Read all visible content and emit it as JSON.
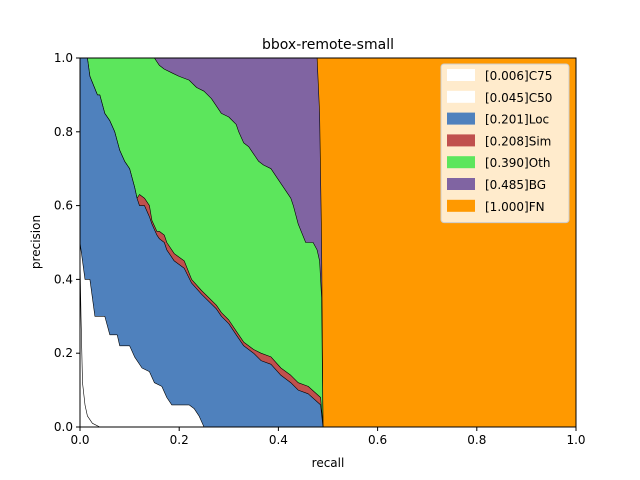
{
  "chart_data": {
    "type": "area",
    "title": "bbox-remote-small",
    "xlabel": "recall",
    "ylabel": "precision",
    "xlim": [
      0,
      1
    ],
    "ylim": [
      0,
      1
    ],
    "x_ticks": [
      "0.0",
      "0.2",
      "0.4",
      "0.6",
      "0.8",
      "1.0"
    ],
    "y_ticks": [
      "0.0",
      "0.2",
      "0.4",
      "0.6",
      "0.8",
      "1.0"
    ],
    "grid": false,
    "legend_position": "top-right",
    "series": [
      {
        "name": "[0.006]C75",
        "color": "#ffffff",
        "points": [
          [
            0,
            0.46
          ],
          [
            0.002,
            0.3
          ],
          [
            0.005,
            0.12
          ],
          [
            0.01,
            0.06
          ],
          [
            0.015,
            0.03
          ],
          [
            0.025,
            0.01
          ],
          [
            0.04,
            0.0
          ]
        ]
      },
      {
        "name": "[0.045]C50",
        "color": "#ffffff",
        "points": [
          [
            0,
            0.5
          ],
          [
            0.005,
            0.45
          ],
          [
            0.01,
            0.4
          ],
          [
            0.02,
            0.4
          ],
          [
            0.03,
            0.3
          ],
          [
            0.05,
            0.3
          ],
          [
            0.06,
            0.25
          ],
          [
            0.075,
            0.25
          ],
          [
            0.08,
            0.22
          ],
          [
            0.1,
            0.22
          ],
          [
            0.11,
            0.19
          ],
          [
            0.125,
            0.16
          ],
          [
            0.14,
            0.15
          ],
          [
            0.15,
            0.12
          ],
          [
            0.165,
            0.11
          ],
          [
            0.175,
            0.08
          ],
          [
            0.185,
            0.06
          ],
          [
            0.22,
            0.06
          ],
          [
            0.23,
            0.05
          ],
          [
            0.24,
            0.03
          ],
          [
            0.25,
            0.0
          ]
        ]
      },
      {
        "name": "[0.201]Loc",
        "color": "#4f81bd",
        "points": [
          [
            0,
            1.0
          ],
          [
            0.015,
            1.0
          ],
          [
            0.02,
            0.95
          ],
          [
            0.035,
            0.9
          ],
          [
            0.04,
            0.9
          ],
          [
            0.05,
            0.85
          ],
          [
            0.06,
            0.83
          ],
          [
            0.07,
            0.8
          ],
          [
            0.08,
            0.75
          ],
          [
            0.09,
            0.72
          ],
          [
            0.1,
            0.7
          ],
          [
            0.11,
            0.65
          ],
          [
            0.115,
            0.62
          ],
          [
            0.12,
            0.6
          ],
          [
            0.13,
            0.6
          ],
          [
            0.14,
            0.57
          ],
          [
            0.145,
            0.55
          ],
          [
            0.155,
            0.52
          ],
          [
            0.16,
            0.51
          ],
          [
            0.17,
            0.5
          ],
          [
            0.175,
            0.48
          ],
          [
            0.19,
            0.45
          ],
          [
            0.21,
            0.43
          ],
          [
            0.225,
            0.39
          ],
          [
            0.245,
            0.36
          ],
          [
            0.275,
            0.32
          ],
          [
            0.285,
            0.3
          ],
          [
            0.3,
            0.28
          ],
          [
            0.315,
            0.25
          ],
          [
            0.33,
            0.22
          ],
          [
            0.35,
            0.2
          ],
          [
            0.365,
            0.18
          ],
          [
            0.385,
            0.17
          ],
          [
            0.405,
            0.14
          ],
          [
            0.425,
            0.12
          ],
          [
            0.44,
            0.1
          ],
          [
            0.46,
            0.09
          ],
          [
            0.485,
            0.06
          ],
          [
            0.49,
            0.0
          ]
        ]
      },
      {
        "name": "[0.208]Sim",
        "color": "#c0504d",
        "points": [
          [
            0,
            1.0
          ],
          [
            0.015,
            1.0
          ],
          [
            0.02,
            0.95
          ],
          [
            0.035,
            0.9
          ],
          [
            0.04,
            0.9
          ],
          [
            0.05,
            0.85
          ],
          [
            0.06,
            0.83
          ],
          [
            0.07,
            0.8
          ],
          [
            0.08,
            0.75
          ],
          [
            0.09,
            0.72
          ],
          [
            0.1,
            0.7
          ],
          [
            0.11,
            0.65
          ],
          [
            0.115,
            0.62
          ],
          [
            0.12,
            0.63
          ],
          [
            0.13,
            0.62
          ],
          [
            0.14,
            0.6
          ],
          [
            0.145,
            0.56
          ],
          [
            0.155,
            0.53
          ],
          [
            0.16,
            0.53
          ],
          [
            0.17,
            0.52
          ],
          [
            0.175,
            0.5
          ],
          [
            0.19,
            0.47
          ],
          [
            0.21,
            0.45
          ],
          [
            0.225,
            0.4
          ],
          [
            0.245,
            0.37
          ],
          [
            0.275,
            0.33
          ],
          [
            0.285,
            0.31
          ],
          [
            0.3,
            0.29
          ],
          [
            0.315,
            0.26
          ],
          [
            0.33,
            0.23
          ],
          [
            0.35,
            0.21
          ],
          [
            0.365,
            0.2
          ],
          [
            0.385,
            0.19
          ],
          [
            0.405,
            0.16
          ],
          [
            0.425,
            0.14
          ],
          [
            0.44,
            0.12
          ],
          [
            0.46,
            0.11
          ],
          [
            0.485,
            0.08
          ],
          [
            0.49,
            0.0
          ]
        ]
      },
      {
        "name": "[0.390]Oth",
        "color": "#5ce65c",
        "points": [
          [
            0,
            1.0
          ],
          [
            0.15,
            1.0
          ],
          [
            0.16,
            0.98
          ],
          [
            0.17,
            0.97
          ],
          [
            0.185,
            0.96
          ],
          [
            0.2,
            0.95
          ],
          [
            0.22,
            0.94
          ],
          [
            0.235,
            0.92
          ],
          [
            0.25,
            0.91
          ],
          [
            0.265,
            0.89
          ],
          [
            0.285,
            0.85
          ],
          [
            0.3,
            0.84
          ],
          [
            0.315,
            0.82
          ],
          [
            0.32,
            0.8
          ],
          [
            0.33,
            0.77
          ],
          [
            0.34,
            0.76
          ],
          [
            0.35,
            0.74
          ],
          [
            0.36,
            0.72
          ],
          [
            0.37,
            0.71
          ],
          [
            0.385,
            0.7
          ],
          [
            0.395,
            0.68
          ],
          [
            0.41,
            0.65
          ],
          [
            0.425,
            0.62
          ],
          [
            0.43,
            0.6
          ],
          [
            0.44,
            0.55
          ],
          [
            0.455,
            0.5
          ],
          [
            0.47,
            0.5
          ],
          [
            0.478,
            0.48
          ],
          [
            0.483,
            0.45
          ],
          [
            0.487,
            0.35
          ],
          [
            0.49,
            0.0
          ]
        ]
      },
      {
        "name": "[0.485]BG",
        "color": "#8064a2",
        "points": [
          [
            0,
            1.0
          ],
          [
            0.478,
            1.0
          ],
          [
            0.483,
            0.85
          ],
          [
            0.487,
            0.5
          ],
          [
            0.49,
            0.0
          ]
        ]
      },
      {
        "name": "[1.000]FN",
        "color": "#ff9900",
        "points": [
          [
            0,
            1.0
          ],
          [
            1.0,
            1.0
          ],
          [
            1.0,
            0.0
          ]
        ]
      }
    ]
  }
}
